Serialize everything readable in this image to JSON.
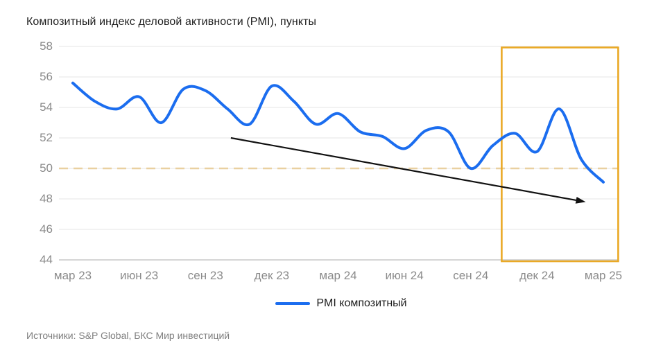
{
  "source": "Источники: S&P Global, БКС Мир инвестиций",
  "colors": {
    "line_blue": "#1b6def",
    "reference_tan": "#e9d0a0",
    "highlight_orange": "#eaa925",
    "arrow_black": "#111111",
    "grid_gray": "#e4e4e4",
    "axis_text_gray": "#8b8b8b"
  },
  "chart_data": {
    "type": "line",
    "title": "Композитный индекс деловой активности (PMI), пункты",
    "xlabel": "",
    "ylabel": "",
    "ylim": [
      44,
      58
    ],
    "grid": true,
    "legend_position": "bottom",
    "y_ticks": [
      58,
      56,
      54,
      52,
      50,
      48,
      46,
      44
    ],
    "x_tick_labels": [
      "мар 23",
      "июн 23",
      "сен 23",
      "дек 23",
      "мар 24",
      "июн 24",
      "сен 24",
      "дек 24",
      "мар 25"
    ],
    "x": [
      "мар 23",
      "апр 23",
      "май 23",
      "июн 23",
      "июл 23",
      "авг 23",
      "сен 23",
      "окт 23",
      "ноя 23",
      "дек 23",
      "янв 24",
      "фев 24",
      "мар 24",
      "апр 24",
      "май 24",
      "июн 24",
      "июл 24",
      "авг 24",
      "сен 24",
      "окт 24",
      "ноя 24",
      "дек 24",
      "янв 25",
      "фев 25",
      "мар 25"
    ],
    "series": [
      {
        "name": "PMI композитный",
        "color": "#1b6def",
        "values": [
          55.6,
          54.4,
          53.9,
          54.7,
          53.0,
          55.2,
          55.1,
          53.9,
          52.9,
          55.4,
          54.4,
          52.9,
          53.6,
          52.4,
          52.1,
          51.3,
          52.5,
          52.4,
          50.0,
          51.5,
          52.3,
          51.1,
          53.9,
          50.6,
          49.1
        ]
      }
    ],
    "reference_line": {
      "value": 50,
      "style": "dashed",
      "color": "#e9d0a0"
    },
    "highlight_box": {
      "from_index": 19.4,
      "to_index": 24.67,
      "color": "#eaa925"
    },
    "trend_arrow": {
      "from": {
        "month_index": 7.15,
        "value": 52.0
      },
      "to": {
        "month_index": 23.2,
        "value": 47.8
      },
      "color": "#111111"
    }
  }
}
